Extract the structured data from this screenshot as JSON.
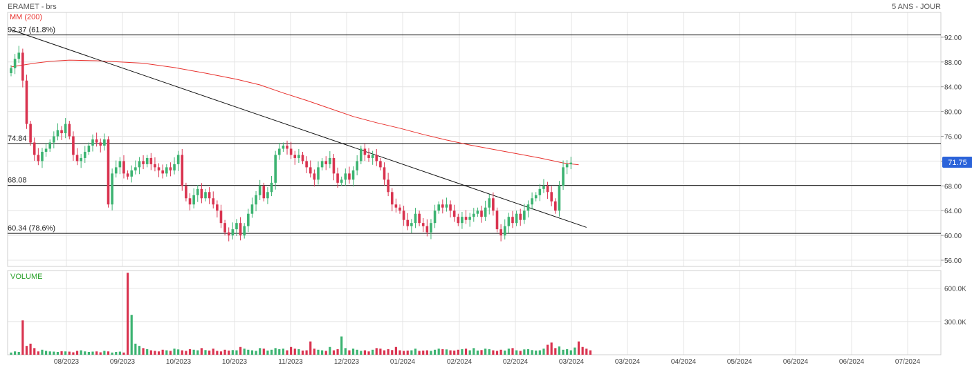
{
  "header": {
    "title": "ERAMET - brs",
    "period": "5 ANS - JOUR"
  },
  "colors": {
    "up": "#3cb371",
    "down": "#d9334f",
    "ma": "#e8312d",
    "grid": "#e4e4e4",
    "level": "#111111",
    "price_tag": "#2b63d9",
    "volume_title": "#2aa12a"
  },
  "chart_data": [
    {
      "type": "line",
      "subtype": "candlestick",
      "ylim": [
        55,
        96
      ],
      "yticks": [
        "56.00",
        "60.00",
        "64.00",
        "68.00",
        "72.00",
        "76.00",
        "80.00",
        "84.00",
        "88.00",
        "92.00"
      ],
      "last_price_label": "71.75",
      "moving_average": {
        "name": "MM (200)"
      },
      "levels": [
        {
          "value": 92.37,
          "label": "92.37  (61.8%)"
        },
        {
          "value": 74.84,
          "label": "74.84"
        },
        {
          "value": 68.08,
          "label": "68.08"
        },
        {
          "value": 60.34,
          "label": "60.34  (78.6%)"
        }
      ],
      "xtick_labels": [
        "08/2023",
        "09/2023",
        "10/2023",
        "10/2023",
        "11/2023",
        "12/2023",
        "01/2024",
        "02/2024",
        "02/2024",
        "03/2024",
        "03/2024",
        "04/2024",
        "05/2024",
        "06/2024",
        "06/2024",
        "07/2024"
      ],
      "closes": [
        87,
        88.5,
        89.5,
        85,
        78,
        75,
        73,
        72,
        73.5,
        74,
        75,
        76,
        77,
        76.5,
        78,
        76,
        73,
        72,
        72.5,
        73.5,
        74.5,
        75.5,
        75,
        74.5,
        75.5,
        65,
        70,
        71,
        72,
        70,
        69.5,
        70.5,
        71,
        72,
        71.5,
        72.5,
        71.5,
        71,
        70.5,
        70,
        71,
        70.5,
        71.5,
        73,
        68,
        66,
        65,
        66.5,
        67.5,
        66,
        67,
        66,
        65,
        64,
        62,
        60.5,
        60,
        61,
        62,
        60,
        61.5,
        63.5,
        65,
        66.5,
        68,
        66,
        67,
        68.5,
        73,
        74,
        74.5,
        74,
        73,
        72.5,
        73,
        72,
        71,
        70,
        69,
        71,
        72,
        71.5,
        72.5,
        70,
        68.5,
        69,
        70,
        69,
        70.5,
        72,
        74,
        73,
        72.5,
        73,
        72,
        71,
        69,
        67,
        65,
        64.5,
        64,
        62.5,
        61.5,
        62,
        63.5,
        62,
        61.5,
        60.5,
        62,
        64,
        65,
        64.5,
        65,
        64,
        63,
        62,
        63,
        62.5,
        63,
        63.5,
        64,
        63,
        64.5,
        66,
        64,
        61,
        60,
        61.5,
        63,
        62,
        63.5,
        62.5,
        64,
        65,
        66,
        66.5,
        67.5,
        68,
        67,
        65.5,
        64,
        68,
        71,
        71.5,
        71.75
      ],
      "ma200": [
        [
          0,
          87.2
        ],
        [
          6,
          87.8
        ],
        [
          10,
          88.1
        ],
        [
          15,
          88.3
        ],
        [
          22,
          88.2
        ],
        [
          28,
          88
        ],
        [
          34,
          87.8
        ],
        [
          42,
          87.1
        ],
        [
          50,
          86.2
        ],
        [
          58,
          85.2
        ],
        [
          64,
          84.3
        ],
        [
          70,
          83
        ],
        [
          76,
          81.8
        ],
        [
          82,
          80.5
        ],
        [
          88,
          79.2
        ],
        [
          94,
          78.2
        ],
        [
          100,
          77.3
        ],
        [
          106,
          76.3
        ],
        [
          112,
          75.4
        ],
        [
          118,
          74.6
        ],
        [
          124,
          73.9
        ],
        [
          130,
          73.2
        ],
        [
          136,
          72.5
        ],
        [
          142,
          71.7
        ],
        [
          146,
          71.4
        ]
      ],
      "trendline": {
        "from": [
          0,
          93.2
        ],
        "to": [
          148,
          61.3
        ]
      }
    },
    {
      "type": "bar",
      "title": "VOLUME",
      "ylim": [
        0,
        760
      ],
      "yticks": [
        "300.0K",
        "600.0K"
      ],
      "volumes": [
        20,
        30,
        25,
        310,
        80,
        100,
        60,
        30,
        45,
        35,
        30,
        28,
        25,
        32,
        30,
        28,
        22,
        35,
        40,
        30,
        25,
        28,
        30,
        22,
        35,
        30,
        20,
        25,
        28,
        20,
        740,
        360,
        100,
        80,
        60,
        50,
        40,
        35,
        30,
        45,
        40,
        35,
        55,
        48,
        40,
        35,
        50,
        45,
        40,
        60,
        42,
        38,
        55,
        35,
        30,
        45,
        38,
        42,
        40,
        70,
        55,
        45,
        40,
        35,
        60,
        55,
        38,
        45,
        60,
        50,
        55,
        40,
        70,
        55,
        50,
        38,
        40,
        120,
        55,
        45,
        40,
        35,
        70,
        40,
        50,
        165,
        60,
        40,
        55,
        45,
        35,
        40,
        30,
        45,
        60,
        55,
        40,
        50,
        42,
        70,
        40,
        35,
        38,
        40,
        55,
        35,
        38,
        40,
        35,
        45,
        55,
        50,
        48,
        40,
        38,
        45,
        50,
        55,
        40,
        60,
        38,
        42,
        55,
        50,
        40,
        35,
        45,
        38,
        55,
        60,
        40,
        35,
        48,
        50,
        42,
        38,
        40,
        55,
        90,
        110,
        60,
        75,
        45,
        50,
        40,
        65,
        120,
        70,
        55,
        40
      ]
    }
  ]
}
